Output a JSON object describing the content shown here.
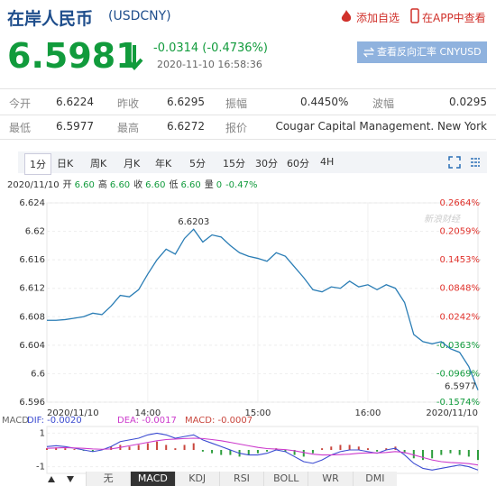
{
  "header": {
    "title": "在岸人民币",
    "code": "(USDCNY)",
    "actions": [
      "添加自选",
      "在APP中查看"
    ]
  },
  "quote": {
    "price": "6.5981",
    "change": "-0.0314 (-0.4736%)",
    "time": "2020-11-10 16:58:36",
    "button": "查看反向汇率 CNYUSD"
  },
  "stats": {
    "rows": [
      [
        [
          "今开",
          "6.6224"
        ],
        [
          "昨收",
          "6.6295"
        ],
        [
          "振幅",
          "0.4450%"
        ],
        [
          "波幅",
          "0.0295"
        ]
      ],
      [
        [
          "最低",
          "6.5977"
        ],
        [
          "最高",
          "6.6272"
        ],
        [
          "报价",
          "Cougar Capital Management. New York"
        ]
      ]
    ]
  },
  "tabs": [
    "1分",
    "日K",
    "周K",
    "月K",
    "年K",
    "5分",
    "15分",
    "30分",
    "60分",
    "4H"
  ],
  "info": {
    "date": "2020/11/10",
    "items": [
      [
        "开",
        "6.60"
      ],
      [
        "高",
        "6.60"
      ],
      [
        "收",
        "6.60"
      ],
      [
        "低",
        "6.60"
      ],
      [
        "量",
        "0"
      ]
    ],
    "change": "-0.47%"
  },
  "chart_data": [
    {
      "type": "line",
      "watermark": "新浪财经",
      "color": "#2a7db5",
      "grid": true,
      "categories": [
        "2020/11/10",
        null,
        null,
        null,
        null,
        null,
        null,
        null,
        null,
        null,
        null,
        "14:00",
        null,
        null,
        null,
        null,
        null,
        null,
        null,
        null,
        null,
        null,
        null,
        "15:00",
        null,
        null,
        null,
        null,
        null,
        null,
        null,
        null,
        null,
        null,
        null,
        "16:00",
        null,
        null,
        null,
        null,
        null,
        null,
        null,
        null,
        null,
        null,
        null,
        "2020/11/10"
      ],
      "values": [
        6.6075,
        6.6075,
        6.6076,
        6.6078,
        6.608,
        6.6085,
        6.6083,
        6.6095,
        6.611,
        6.6108,
        6.6118,
        6.614,
        6.616,
        6.6175,
        6.6168,
        6.619,
        6.6203,
        6.6185,
        6.6195,
        6.6192,
        6.618,
        6.617,
        6.6165,
        6.6162,
        6.6158,
        6.617,
        6.6165,
        6.615,
        6.6135,
        6.6118,
        6.6115,
        6.6122,
        6.612,
        6.613,
        6.6122,
        6.6125,
        6.6118,
        6.6125,
        6.612,
        6.61,
        6.6055,
        6.6045,
        6.6042,
        6.6045,
        6.6035,
        6.603,
        6.601,
        6.5977
      ],
      "ylim": [
        6.596,
        6.624
      ],
      "yticks": [
        6.624,
        6.62,
        6.616,
        6.612,
        6.608,
        6.604,
        6.6,
        6.596
      ],
      "y2lim": [
        -0.1574,
        0.2664
      ],
      "y2ticks": [
        {
          "value": 0.2664,
          "label": "0.2664%"
        },
        {
          "value": 0.2059,
          "label": "0.2059%"
        },
        {
          "value": 0.1453,
          "label": "0.1453%"
        },
        {
          "value": 0.0848,
          "label": "0.0848%"
        },
        {
          "value": 0.0242,
          "label": "0.0242%"
        },
        {
          "value": -0.0363,
          "label": "-0.0363%"
        },
        {
          "value": -0.0969,
          "label": "-0.0969%"
        },
        {
          "value": -0.1574,
          "label": "-0.1574%"
        }
      ],
      "max_label": 6.6203,
      "min_label": 6.5977
    },
    {
      "type": "macd",
      "title": "MACD",
      "ylim": [
        -1.4,
        1.4
      ],
      "yticks": [
        1,
        -1
      ],
      "histogram": {
        "name": "MACD: -0.0007",
        "up_color": "#c9463d",
        "down_color": "#2e9e3e",
        "values": [
          0.1,
          0.15,
          0.1,
          0.05,
          -0.05,
          -0.1,
          0.05,
          0.2,
          0.3,
          0.2,
          0.3,
          0.4,
          0.5,
          0.3,
          0.1,
          0.3,
          0.4,
          -0.1,
          -0.2,
          -0.3,
          -0.3,
          -0.4,
          -0.3,
          -0.2,
          -0.1,
          0.1,
          -0.1,
          -0.3,
          -0.4,
          -0.2,
          0.1,
          0.2,
          0.3,
          0.3,
          0.2,
          0.1,
          -0.1,
          0.1,
          0.2,
          -0.2,
          -0.5,
          -0.6,
          -0.5,
          -0.3,
          -0.2,
          -0.3,
          -0.4,
          -0.6
        ]
      },
      "series": [
        {
          "name": "DIF: -0.0020",
          "color": "#3b4bd1",
          "values": [
            0.2,
            0.25,
            0.2,
            0.1,
            0,
            -0.1,
            0,
            0.2,
            0.5,
            0.6,
            0.7,
            0.9,
            1.0,
            0.9,
            0.7,
            0.8,
            0.9,
            0.6,
            0.4,
            0.2,
            0,
            -0.2,
            -0.3,
            -0.3,
            -0.2,
            0,
            -0.1,
            -0.4,
            -0.7,
            -0.8,
            -0.6,
            -0.3,
            -0.1,
            0,
            0,
            -0.1,
            -0.2,
            0,
            0.1,
            -0.3,
            -0.8,
            -1.1,
            -1.2,
            -1.1,
            -1.0,
            -0.9,
            -1.0,
            -1.2
          ]
        },
        {
          "name": "DEA: -0.0017",
          "color": "#cc3acc",
          "values": [
            0.1,
            0.12,
            0.14,
            0.12,
            0.1,
            0.06,
            0.04,
            0.06,
            0.15,
            0.25,
            0.35,
            0.45,
            0.55,
            0.62,
            0.65,
            0.68,
            0.7,
            0.68,
            0.62,
            0.55,
            0.45,
            0.35,
            0.25,
            0.15,
            0.08,
            0.05,
            0.02,
            -0.05,
            -0.15,
            -0.25,
            -0.3,
            -0.3,
            -0.28,
            -0.25,
            -0.2,
            -0.18,
            -0.18,
            -0.15,
            -0.1,
            -0.15,
            -0.3,
            -0.45,
            -0.6,
            -0.7,
            -0.75,
            -0.78,
            -0.82,
            -0.9
          ]
        }
      ]
    }
  ],
  "indicator_tabs": [
    "无",
    "MACD",
    "KDJ",
    "RSI",
    "BOLL",
    "WR",
    "DMI"
  ]
}
